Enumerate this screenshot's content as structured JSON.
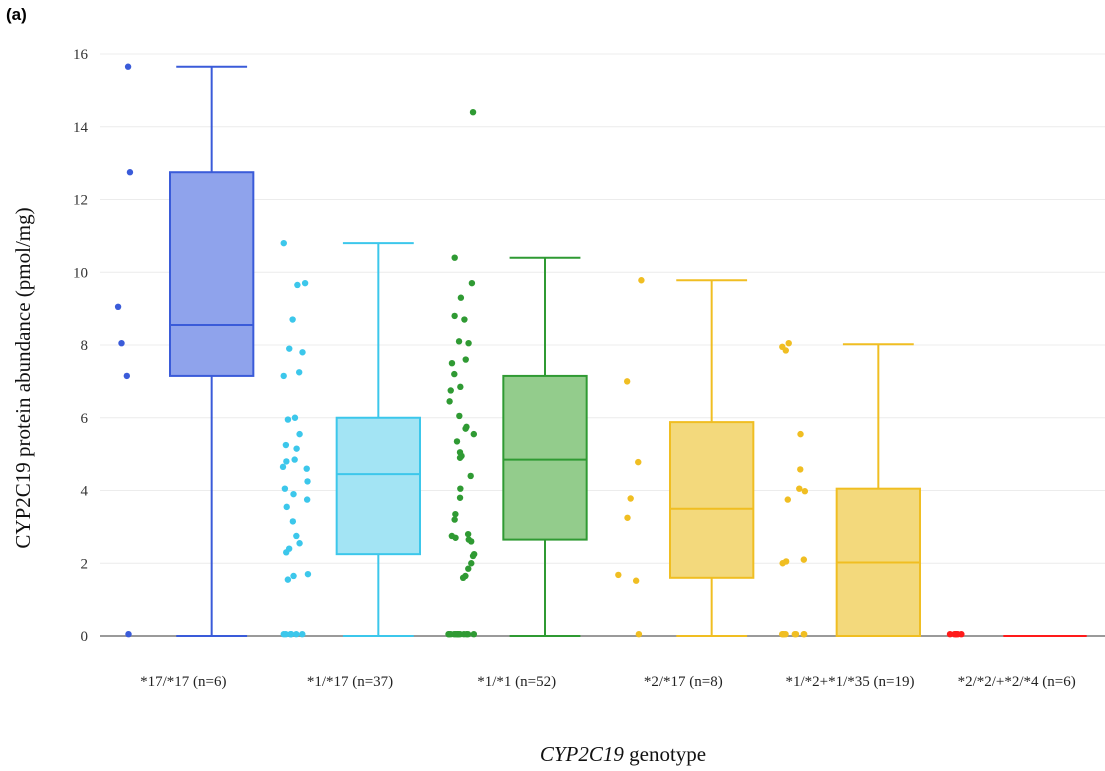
{
  "panel_label": "(a)",
  "chart_data": {
    "type": "box",
    "xlabel_italic": "CYP2C19",
    "xlabel_rest": " genotype",
    "ylabel": "CYP2C19 protein abundance (pmol/mg)",
    "ylim": [
      0,
      16
    ],
    "yticks": [
      0,
      2,
      4,
      6,
      8,
      10,
      12,
      14,
      16
    ],
    "grid": true,
    "groups": [
      {
        "label": "*17/*17 (n=6)",
        "color": "#3a5bd9",
        "fill": "#8fa3ec",
        "min": 0,
        "q1": 7.15,
        "median": 8.55,
        "q3": 12.75,
        "max": 15.65,
        "points": [
          15.65,
          12.75,
          9.05,
          8.05,
          7.15,
          0.05
        ]
      },
      {
        "label": "*1/*17 (n=37)",
        "color": "#3cc7eb",
        "fill": "#a3e4f4",
        "min": 0,
        "q1": 2.25,
        "median": 4.45,
        "q3": 6.0,
        "max": 10.8,
        "points": [
          10.8,
          9.7,
          9.65,
          8.7,
          7.9,
          7.8,
          7.25,
          7.15,
          6.0,
          5.95,
          5.55,
          5.25,
          5.15,
          4.85,
          4.8,
          4.65,
          4.6,
          4.25,
          4.05,
          3.9,
          3.75,
          3.55,
          3.15,
          2.75,
          2.55,
          2.4,
          2.3,
          1.7,
          1.65,
          1.55,
          0.05,
          0.05,
          0.05,
          0.05,
          0.05,
          0.05,
          0.05
        ]
      },
      {
        "label": "*1/*1 (n=52)",
        "color": "#2f9a33",
        "fill": "#93cc8c",
        "min": 0,
        "q1": 2.65,
        "median": 4.85,
        "q3": 7.15,
        "max": 10.4,
        "points": [
          14.4,
          10.4,
          9.7,
          9.3,
          8.8,
          8.7,
          8.1,
          8.05,
          7.6,
          7.5,
          7.2,
          6.85,
          6.75,
          6.45,
          6.05,
          5.75,
          5.7,
          5.55,
          5.35,
          5.05,
          4.95,
          4.9,
          4.4,
          4.05,
          3.8,
          3.35,
          3.2,
          2.8,
          2.75,
          2.7,
          2.65,
          2.6,
          2.25,
          2.2,
          2.0,
          1.85,
          1.65,
          1.6,
          0.05,
          0.05,
          0.05,
          0.05,
          0.05,
          0.05,
          0.05,
          0.05,
          0.05,
          0.05,
          0.05,
          0.05,
          0.05,
          0.05
        ]
      },
      {
        "label": "*2/*17 (n=8)",
        "color": "#f0be22",
        "fill": "#f3d97c",
        "min": 0,
        "q1": 1.6,
        "median": 3.5,
        "q3": 5.88,
        "max": 9.78,
        "points": [
          9.78,
          7.0,
          4.78,
          3.78,
          3.25,
          1.68,
          1.52,
          0.05
        ]
      },
      {
        "label": "*1/*2+*1/*35 (n=19)",
        "color": "#f0be22",
        "fill": "#f3d97c",
        "min": 0,
        "q1": 0,
        "median": 2.02,
        "q3": 4.05,
        "max": 8.02,
        "points": [
          8.05,
          7.95,
          7.85,
          5.55,
          4.58,
          4.05,
          3.98,
          3.75,
          2.1,
          2.05,
          2.0,
          0.05,
          0.05,
          0.05,
          0.05,
          0.05,
          0.05,
          0.05,
          0.05
        ]
      },
      {
        "label": "*2/*2/+*2/*4 (n=6)",
        "color": "#ff1a1a",
        "fill": "#ff8a8a",
        "min": 0,
        "q1": 0,
        "median": 0,
        "q3": 0,
        "max": 0,
        "points": [
          0.05,
          0.05,
          0.05,
          0.05,
          0.05,
          0.05
        ]
      }
    ]
  }
}
